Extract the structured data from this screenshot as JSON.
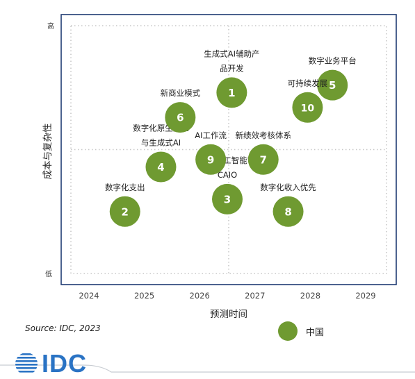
{
  "chart_data": {
    "type": "scatter",
    "xlabel": "预测时间",
    "ylabel": "成本与复杂性",
    "xlim": [
      2023.7,
      2029.4
    ],
    "x_ticks": [
      "2024",
      "2025",
      "2026",
      "2027",
      "2028",
      "2029"
    ],
    "y_tick_high": "高",
    "y_tick_low": "低",
    "ylim": [
      0,
      100
    ],
    "grid": true,
    "grid_style": "dotted",
    "marker_color": "#6f9a31",
    "points": [
      {
        "id": "1",
        "x": 2026.58,
        "y": 73,
        "label": [
          "生成式AI辅助产",
          "品开发"
        ]
      },
      {
        "id": "2",
        "x": 2024.65,
        "y": 25,
        "label": [
          "数字化支出"
        ]
      },
      {
        "id": "3",
        "x": 2026.5,
        "y": 30,
        "label": [
          "首席人工智能官",
          "CAIO"
        ]
      },
      {
        "id": "4",
        "x": 2025.3,
        "y": 43,
        "label": [
          "数字化原生企业",
          "与生成式AI"
        ]
      },
      {
        "id": "5",
        "x": 2028.4,
        "y": 76,
        "label": [
          "数字业务平台"
        ]
      },
      {
        "id": "6",
        "x": 2025.65,
        "y": 63,
        "label": [
          "新商业模式"
        ]
      },
      {
        "id": "7",
        "x": 2027.15,
        "y": 46,
        "label": [
          "新绩效考核体系"
        ]
      },
      {
        "id": "8",
        "x": 2027.6,
        "y": 25,
        "label": [
          "数字化收入优先"
        ]
      },
      {
        "id": "9",
        "x": 2026.2,
        "y": 46,
        "label": [
          "AI工作流"
        ]
      },
      {
        "id": "10",
        "x": 2027.95,
        "y": 67,
        "label": [
          "可持续发展"
        ]
      }
    ]
  },
  "legend": {
    "label": "中国",
    "color": "#6f9a31"
  },
  "source": "Source: IDC, 2023",
  "logo": {
    "text": "IDC",
    "color": "#2a73c4"
  }
}
